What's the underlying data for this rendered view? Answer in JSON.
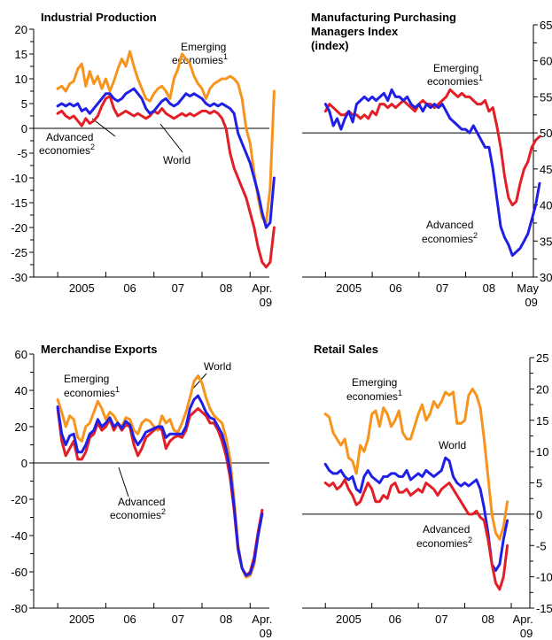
{
  "chart_data": [
    {
      "id": "ip",
      "type": "line",
      "title_lines": [
        "Industrial Production"
      ],
      "xlim": [
        2004.5,
        2009.4
      ],
      "ylim": [
        -30,
        20
      ],
      "y_ticks": [
        20,
        15,
        10,
        5,
        0,
        -5,
        -10,
        -15,
        -20,
        -25,
        -30
      ],
      "y_axis": "left",
      "x_tick_labels": [
        {
          "x": 2005.5,
          "label": "2005"
        },
        {
          "x": 2006.5,
          "label": "06"
        },
        {
          "x": 2007.5,
          "label": "07"
        },
        {
          "x": 2008.5,
          "label": "08"
        },
        {
          "x": 2009.25,
          "label": "Apr.",
          "label2": "09"
        }
      ],
      "zero_line": 0,
      "series": [
        {
          "name": "Emerging economies1",
          "color": "#f7941d",
          "x0": 2005.0,
          "step": 0.0833333,
          "values": [
            8,
            8.5,
            7.5,
            9,
            9.5,
            12,
            13,
            8.5,
            11.5,
            9,
            10.5,
            8,
            10,
            7.5,
            9.5,
            12,
            14,
            12.5,
            15.5,
            12.5,
            10,
            8,
            6,
            5.5,
            7,
            8,
            8.5,
            7.5,
            6,
            10,
            12,
            15,
            14,
            13,
            10.5,
            9,
            8,
            6,
            8,
            9,
            9.5,
            10,
            10,
            10.5,
            10,
            9,
            6,
            0,
            -3,
            -9,
            -14,
            -18,
            -19,
            -12,
            7.5
          ]
        },
        {
          "name": "Advanced economies2",
          "color": "#e21e26",
          "x0": 2005.0,
          "step": 0.0833333,
          "values": [
            3,
            3.5,
            2.5,
            2,
            2.5,
            1.5,
            0.5,
            2,
            1,
            1.5,
            2.5,
            4.5,
            6,
            6.5,
            4,
            2.5,
            3,
            3.5,
            3,
            2.5,
            3,
            2.5,
            2,
            2.5,
            3.5,
            3,
            4,
            3,
            2.5,
            2,
            2.5,
            3,
            2.5,
            3,
            2.5,
            3,
            3.5,
            3.5,
            3,
            3.5,
            3,
            2,
            0,
            -5,
            -8,
            -10,
            -12,
            -14,
            -17,
            -20,
            -24,
            -27,
            -28,
            -27,
            -20
          ]
        },
        {
          "name": "World",
          "color": "#1f1fe6",
          "x0": 2005.0,
          "step": 0.0833333,
          "values": [
            4.5,
            5,
            4.5,
            5,
            4.5,
            5,
            3.5,
            4,
            3,
            4,
            5,
            6,
            7,
            7,
            6,
            5.5,
            6,
            7,
            7.5,
            8,
            7,
            6,
            4,
            3,
            3.5,
            4.5,
            5.5,
            6,
            5,
            4.5,
            5,
            6,
            7,
            6.5,
            7,
            6.5,
            6,
            5,
            4.5,
            5,
            4.5,
            5,
            4.5,
            4,
            3,
            -1,
            -3,
            -5,
            -7,
            -10,
            -13,
            -17,
            -20,
            -19,
            -10
          ]
        }
      ],
      "annotations": [
        {
          "text": "Emerging",
          "sup": ""
        },
        {
          "text": "economies",
          "sup": "1"
        },
        {
          "text": "Advanced",
          "sup": ""
        },
        {
          "text": "economies",
          "sup": "2"
        },
        {
          "text": "World",
          "sup": ""
        }
      ]
    },
    {
      "id": "pmi",
      "type": "line",
      "title_lines": [
        "Manufacturing Purchasing",
        "Managers Index",
        "(index)"
      ],
      "xlim": [
        2004.5,
        2009.45
      ],
      "ylim": [
        30,
        65
      ],
      "y_ticks": [
        65,
        60,
        55,
        50,
        45,
        40,
        35,
        30
      ],
      "y_axis": "right",
      "x_tick_labels": [
        {
          "x": 2005.5,
          "label": "2005"
        },
        {
          "x": 2006.5,
          "label": "06"
        },
        {
          "x": 2007.5,
          "label": "07"
        },
        {
          "x": 2008.5,
          "label": "08"
        },
        {
          "x": 2009.33,
          "label": "May",
          "label2": "09"
        }
      ],
      "zero_line": 50,
      "series": [
        {
          "name": "Emerging economies1",
          "color": "#e21e26",
          "x0": 2005.0,
          "step": 0.0833333,
          "values": [
            53,
            54,
            53.5,
            53,
            52.5,
            52.5,
            53,
            52.5,
            52.5,
            52,
            52.5,
            52,
            53,
            52.5,
            54,
            54,
            53.5,
            54,
            53.5,
            54,
            54.5,
            54,
            53.5,
            53,
            54,
            54.5,
            54,
            54,
            53.5,
            54,
            54.5,
            55,
            56,
            55.5,
            55,
            55.5,
            55,
            55,
            54.5,
            54,
            54,
            54.5,
            53,
            53.5,
            51,
            48,
            44,
            41,
            40,
            40.5,
            43,
            45,
            46,
            48,
            49,
            49.5
          ]
        },
        {
          "name": "Advanced economies2",
          "color": "#1f1fe6",
          "x0": 2005.0,
          "step": 0.0833333,
          "values": [
            54,
            53,
            51,
            52,
            50.5,
            52,
            53,
            51.5,
            54,
            54.5,
            55,
            54.5,
            55,
            54.5,
            55,
            55.5,
            54.5,
            56,
            55,
            55,
            54.5,
            55,
            54,
            53.5,
            54,
            53,
            54,
            53.5,
            54,
            53.5,
            54,
            53,
            52,
            51.5,
            51,
            50.5,
            50.5,
            50,
            51,
            50,
            49,
            48,
            48,
            45,
            41,
            37,
            35.5,
            34.5,
            33,
            33.5,
            34,
            35,
            36,
            38,
            40,
            43
          ]
        }
      ],
      "annotations": [
        {
          "text": "Emerging",
          "sup": ""
        },
        {
          "text": "economies",
          "sup": "1"
        },
        {
          "text": "Advanced",
          "sup": ""
        },
        {
          "text": "economies",
          "sup": "2"
        }
      ]
    },
    {
      "id": "exports",
      "type": "line",
      "title_lines": [
        "Merchandise Exports"
      ],
      "xlim": [
        2004.5,
        2009.4
      ],
      "ylim": [
        -80,
        60
      ],
      "y_ticks": [
        60,
        40,
        20,
        0,
        -20,
        -40,
        -60,
        -80
      ],
      "y_axis": "left",
      "x_tick_labels": [
        {
          "x": 2005.5,
          "label": "2005"
        },
        {
          "x": 2006.5,
          "label": "06"
        },
        {
          "x": 2007.5,
          "label": "07"
        },
        {
          "x": 2008.5,
          "label": "08"
        },
        {
          "x": 2009.25,
          "label": "Apr.",
          "label2": "09"
        }
      ],
      "zero_line": 0,
      "series": [
        {
          "name": "Emerging economies1",
          "color": "#f7941d",
          "x0": 2005.0,
          "step": 0.0833333,
          "values": [
            35,
            28,
            20,
            26,
            24,
            14,
            12,
            20,
            22,
            28,
            34,
            30,
            24,
            28,
            26,
            22,
            20,
            25,
            24,
            18,
            16,
            22,
            24,
            23,
            20,
            18,
            26,
            22,
            24,
            18,
            17,
            22,
            28,
            36,
            45,
            48,
            44,
            36,
            30,
            26,
            24,
            22,
            14,
            2,
            -20,
            -45,
            -58,
            -63,
            -62,
            -56,
            -40,
            -28
          ]
        },
        {
          "name": "Advanced economies2",
          "color": "#e21e26",
          "x0": 2005.0,
          "step": 0.0833333,
          "values": [
            30,
            12,
            4,
            8,
            12,
            2,
            2,
            6,
            14,
            16,
            22,
            18,
            20,
            24,
            18,
            22,
            18,
            21,
            20,
            10,
            4,
            8,
            14,
            16,
            18,
            20,
            18,
            8,
            12,
            14,
            15,
            14,
            18,
            26,
            28,
            30,
            28,
            26,
            22,
            22,
            18,
            12,
            4,
            -8,
            -26,
            -48,
            -58,
            -62,
            -60,
            -52,
            -38,
            -26
          ]
        },
        {
          "name": "World",
          "color": "#1f1fe6",
          "x0": 2005.0,
          "step": 0.0833333,
          "values": [
            31,
            16,
            10,
            15,
            16,
            6,
            6,
            10,
            16,
            18,
            24,
            20,
            22,
            25,
            20,
            22,
            19,
            23,
            21,
            14,
            10,
            13,
            17,
            18,
            19,
            20,
            20,
            14,
            16,
            16,
            16,
            16,
            20,
            30,
            35,
            37,
            33,
            28,
            25,
            24,
            20,
            16,
            8,
            -4,
            -24,
            -47,
            -58,
            -62,
            -61,
            -54,
            -40,
            -28
          ]
        }
      ],
      "annotations": [
        {
          "text": "Emerging",
          "sup": ""
        },
        {
          "text": "economies",
          "sup": "1"
        },
        {
          "text": "World",
          "sup": ""
        },
        {
          "text": "Advanced",
          "sup": ""
        },
        {
          "text": "economies",
          "sup": "2"
        }
      ]
    },
    {
      "id": "retail",
      "type": "line",
      "title_lines": [
        "Retail Sales"
      ],
      "xlim": [
        2004.5,
        2009.4
      ],
      "ylim": [
        -15,
        25
      ],
      "y_ticks": [
        25,
        20,
        15,
        10,
        5,
        0,
        -5,
        -10,
        -15
      ],
      "y_axis": "right",
      "x_tick_labels": [
        {
          "x": 2005.5,
          "label": "2005"
        },
        {
          "x": 2006.5,
          "label": "06"
        },
        {
          "x": 2007.5,
          "label": "07"
        },
        {
          "x": 2008.5,
          "label": "08"
        },
        {
          "x": 2009.25,
          "label": "Apr.",
          "label2": "09"
        }
      ],
      "zero_line": 0,
      "series": [
        {
          "name": "Emerging economies1",
          "color": "#f7941d",
          "x0": 2005.0,
          "step": 0.0833333,
          "values": [
            16,
            15.5,
            13,
            12,
            11,
            12,
            9,
            8.5,
            6.5,
            11,
            10,
            12,
            16,
            16.5,
            14,
            17,
            16,
            14,
            15,
            16.5,
            13,
            12,
            12,
            14,
            16,
            17.5,
            15,
            16,
            18,
            17,
            18,
            19.5,
            19,
            19.5,
            14.5,
            14.5,
            15,
            19,
            20,
            19,
            17,
            12,
            6,
            0,
            -3,
            -4,
            -2,
            2
          ]
        },
        {
          "name": "World",
          "color": "#1f1fe6",
          "x0": 2005.0,
          "step": 0.0833333,
          "values": [
            8,
            7,
            6.5,
            6.5,
            7,
            6,
            5.5,
            6,
            4,
            3.5,
            6,
            7,
            6,
            5.5,
            5,
            6,
            6,
            6.5,
            6.5,
            6,
            6,
            7,
            5.5,
            6,
            6.5,
            6,
            7,
            6.5,
            6,
            6.5,
            7,
            9,
            8.5,
            6,
            5,
            4.5,
            5,
            4.5,
            5,
            5.5,
            4,
            1,
            -3,
            -8,
            -9,
            -8,
            -4,
            -1
          ]
        },
        {
          "name": "Advanced economies2",
          "color": "#e21e26",
          "x0": 2005.0,
          "step": 0.0833333,
          "values": [
            5,
            4.5,
            5,
            4,
            4.5,
            5.5,
            4,
            3,
            1.5,
            2,
            3.5,
            5,
            4,
            2,
            2,
            3,
            2.5,
            4.5,
            5,
            3.5,
            3.5,
            4,
            3,
            3.5,
            4,
            3.5,
            5,
            4.5,
            4,
            3,
            4,
            4.5,
            5,
            4,
            3,
            2,
            1,
            0,
            0,
            0.5,
            -0.5,
            -1,
            -4,
            -8,
            -11,
            -12,
            -10,
            -5
          ]
        }
      ],
      "annotations": [
        {
          "text": "Emerging",
          "sup": ""
        },
        {
          "text": "economies",
          "sup": "1"
        },
        {
          "text": "World",
          "sup": ""
        },
        {
          "text": "Advanced",
          "sup": ""
        },
        {
          "text": "economies",
          "sup": "2"
        }
      ]
    }
  ]
}
